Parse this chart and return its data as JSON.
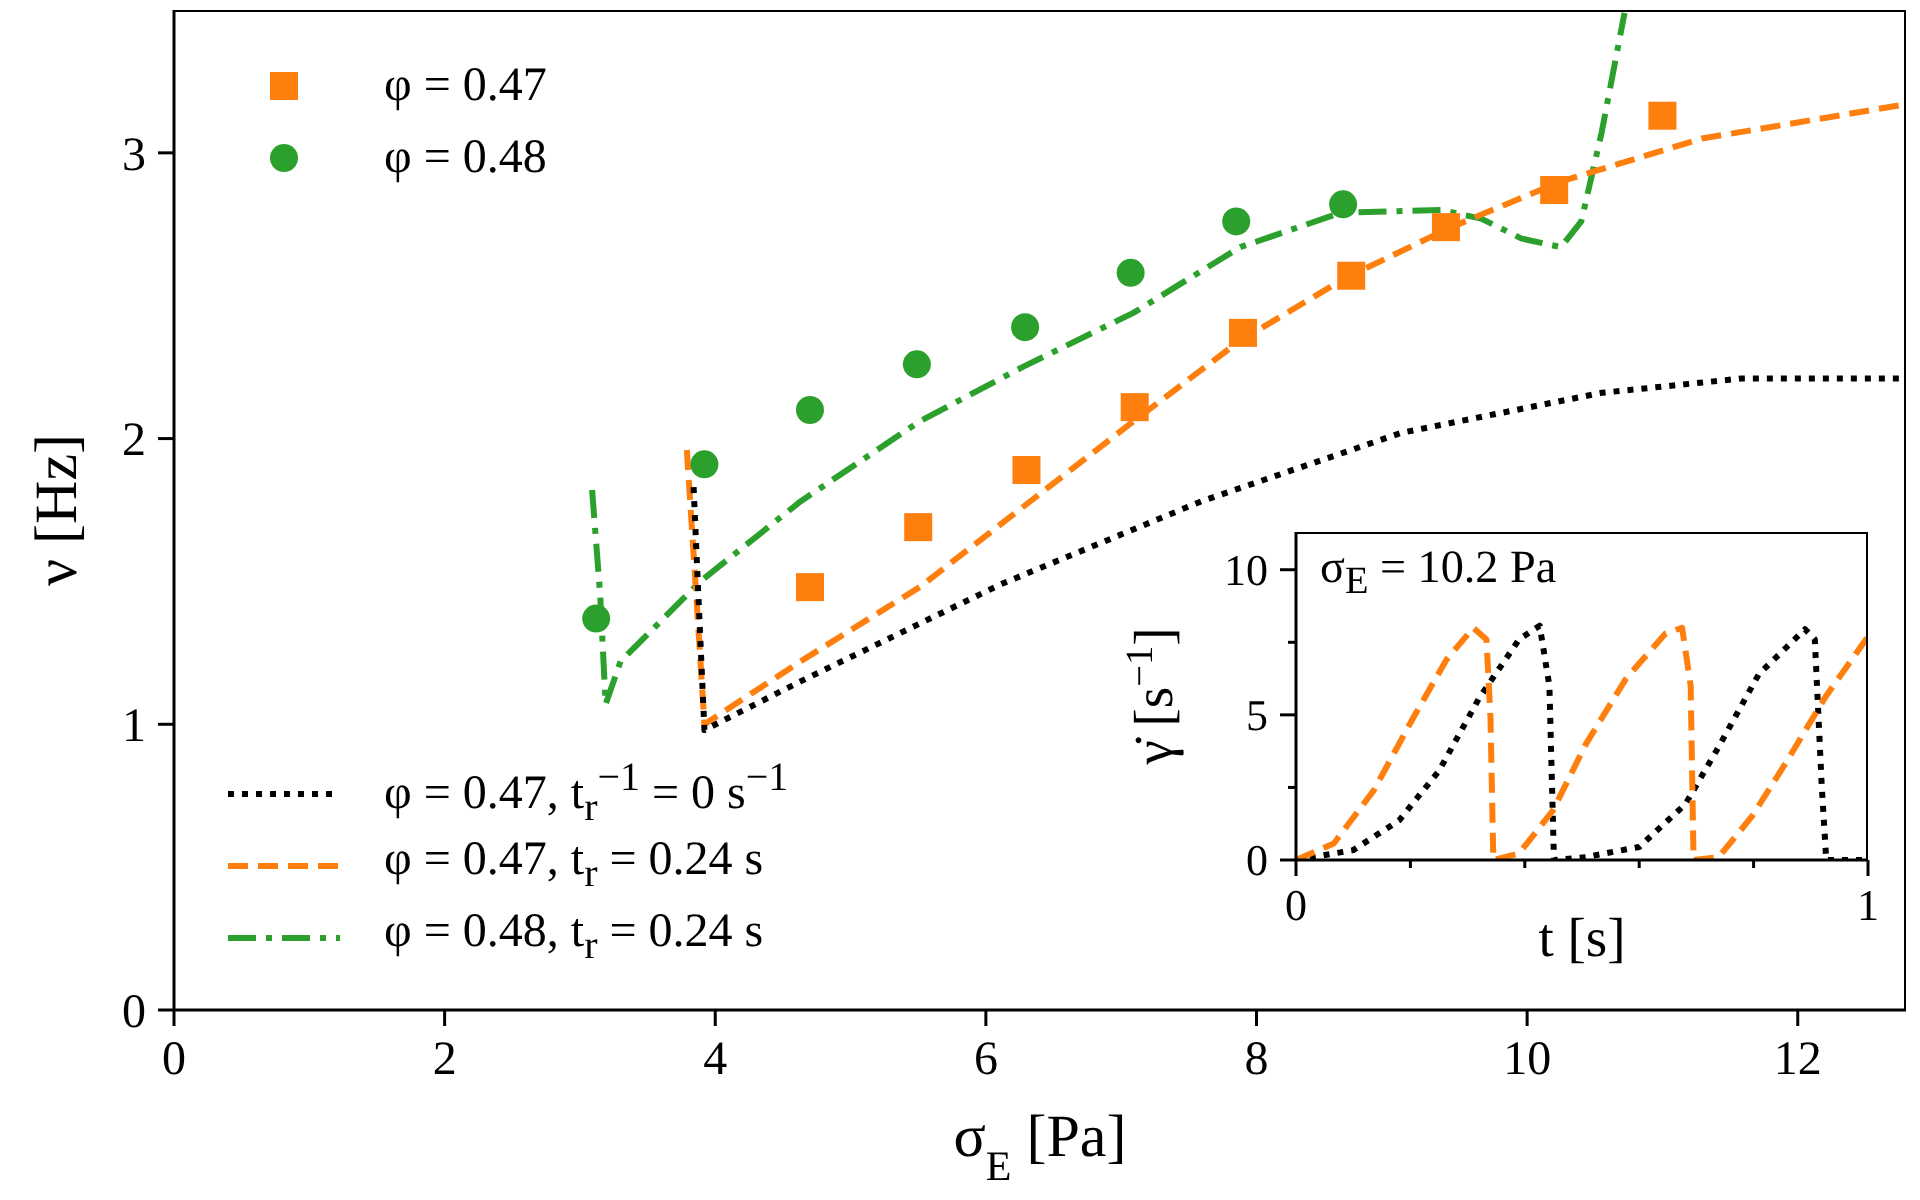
{
  "chart_data": [
    {
      "type": "line",
      "xlabel": "σ$_{E}$ [Pa]",
      "ylabel": "ν [Hz]",
      "xlim": [
        0,
        12.8
      ],
      "xticks": [
        0,
        2,
        4,
        6,
        8,
        10,
        12
      ],
      "ylim": [
        0,
        3.5
      ],
      "yticks": [
        0,
        1,
        2,
        3
      ],
      "legend": "left",
      "series": [
        {
          "type": "scatter",
          "name": "φ = 0.47",
          "color": "#ff7f0e",
          "marker": "square",
          "x": [
            4.7,
            5.5,
            6.3,
            7.1,
            7.9,
            8.7,
            9.4,
            10.2,
            11.0
          ],
          "values": [
            1.48,
            1.69,
            1.89,
            2.11,
            2.37,
            2.57,
            2.74,
            2.87,
            3.13
          ]
        },
        {
          "type": "scatter",
          "name": "φ = 0.48",
          "color": "#2ca02c",
          "marker": "circle",
          "x": [
            3.12,
            3.92,
            4.7,
            5.49,
            6.29,
            7.07,
            7.85,
            8.64
          ],
          "values": [
            1.37,
            1.91,
            2.1,
            2.26,
            2.39,
            2.58,
            2.76,
            2.82
          ]
        },
        {
          "name": "φ = 0.47, t$_{r}$$^{−1}$ = 0 s$^{−1}$",
          "color": "#000000",
          "line_style": "dotted",
          "x": [
            3.84,
            3.88,
            3.92,
            4.63,
            6.11,
            7.59,
            9.07,
            10.55,
            11.58,
            12.8
          ],
          "values": [
            1.83,
            1.4,
            0.98,
            1.15,
            1.49,
            1.78,
            2.02,
            2.16,
            2.21,
            2.21
          ]
        },
        {
          "name": "φ = 0.47, t$_{r}$ = 0.24 s",
          "color": "#ff7f0e",
          "line_style": "dashed",
          "x": [
            3.79,
            3.86,
            3.92,
            4.63,
            5.51,
            7.09,
            7.87,
            8.65,
            9.44,
            10.25,
            11.29,
            12.8
          ],
          "values": [
            1.96,
            1.45,
            1.0,
            1.22,
            1.48,
            2.06,
            2.34,
            2.56,
            2.74,
            2.9,
            3.05,
            3.17
          ]
        },
        {
          "name": "φ = 0.48, t$_{r}$ = 0.24 s",
          "color": "#2ca02c",
          "line_style": "dashdot",
          "x": [
            3.09,
            3.15,
            3.19,
            3.3,
            3.89,
            4.63,
            5.51,
            6.27,
            7.09,
            7.88,
            8.62,
            9.36,
            9.66,
            9.96,
            10.25,
            10.4,
            10.55,
            10.72
          ],
          "values": [
            1.82,
            1.45,
            1.07,
            1.22,
            1.5,
            1.78,
            2.06,
            2.25,
            2.44,
            2.67,
            2.79,
            2.8,
            2.77,
            2.7,
            2.67,
            2.76,
            3.07,
            3.49
          ]
        }
      ]
    },
    {
      "type": "line",
      "xlabel": "t [s]",
      "ylabel": "γ̇ [s$^{−1}$]",
      "annotations": [
        "σ$_{E}$ = 10.2 Pa"
      ],
      "xlim": [
        0,
        1
      ],
      "xticks": [
        0,
        {
          "value": 0.2,
          "label": null
        },
        {
          "value": 0.4,
          "label": null
        },
        {
          "value": 0.6,
          "label": null
        },
        {
          "value": 0.8,
          "label": null
        },
        1
      ],
      "ylim": [
        0,
        11.3
      ],
      "yticks": [
        0,
        {
          "value": 2.5,
          "label": null
        },
        5,
        {
          "value": 7.5,
          "label": null
        },
        10
      ],
      "series": [
        {
          "color": "#ff7f0e",
          "line_style": "dashed",
          "x": [
            0,
            0.066,
            0.136,
            0.205,
            0.263,
            0.31,
            0.333,
            0.34,
            0.345,
            0.39,
            0.449,
            0.507,
            0.577,
            0.646,
            0.675,
            0.69,
            0.695,
            0.739,
            0.797,
            0.855,
            0.925,
            1
          ],
          "values": [
            0,
            0.57,
            2.4,
            4.9,
            6.9,
            8.0,
            7.6,
            4.9,
            0,
            0.23,
            1.7,
            4.0,
            6.25,
            7.8,
            8.0,
            6.0,
            0,
            0.1,
            1.5,
            3.3,
            5.6,
            7.7
          ]
        },
        {
          "color": "#000000",
          "line_style": "dotted",
          "x": [
            0,
            0.1,
            0.18,
            0.25,
            0.32,
            0.39,
            0.426,
            0.443,
            0.451,
            0.507,
            0.6,
            0.681,
            0.739,
            0.809,
            0.89,
            0.907,
            0.919,
            0.927,
            1
          ],
          "values": [
            0,
            0.34,
            1.36,
            3.07,
            5.57,
            7.6,
            8.07,
            6.0,
            0,
            0.1,
            0.45,
            1.93,
            3.9,
            6.4,
            7.95,
            7.6,
            2.6,
            0,
            0
          ]
        }
      ]
    }
  ]
}
